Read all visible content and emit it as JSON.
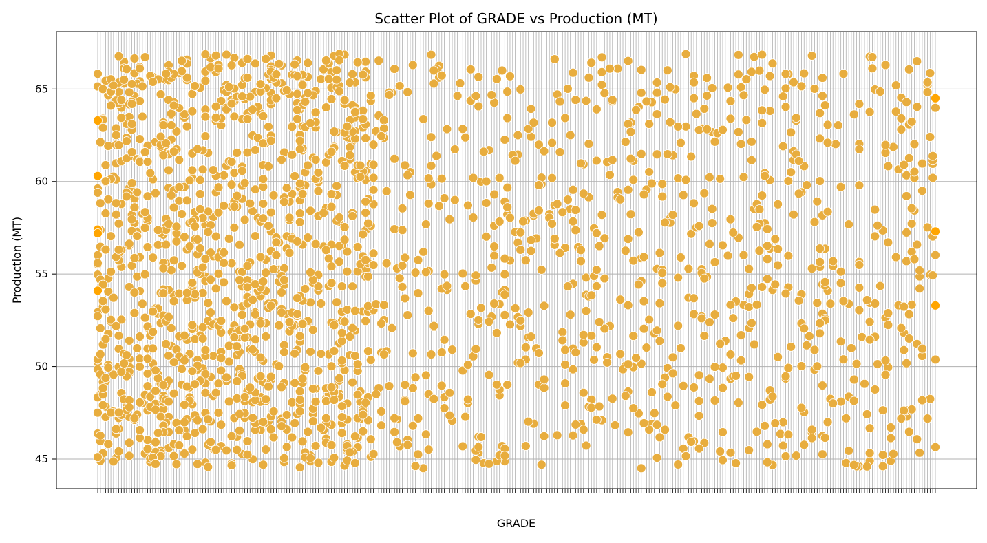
{
  "chart_data": {
    "type": "scatter",
    "title": "Scatter Plot of GRADE vs Production (MT)",
    "xlabel": "GRADE",
    "ylabel": "Production (MT)",
    "x_axis": "categorical",
    "category_count": 320,
    "ylim": [
      43.4,
      68.1
    ],
    "yticks": [
      45,
      50,
      55,
      60,
      65
    ],
    "grid": true,
    "x_tick_labels": "illegible (overlapping)",
    "marker_color": "#E8AD3E",
    "marker_edge_color": "#ffffff",
    "accent_point_color": "#FFA500",
    "grid_color": "#b0b0b0",
    "points": [
      [
        0,
        63.3
      ],
      [
        0,
        60.3
      ],
      [
        0,
        57.4
      ],
      [
        0,
        57.2
      ],
      [
        0,
        54.1
      ],
      [
        319,
        57.3
      ],
      [
        319,
        53.3
      ],
      [
        319,
        64.5
      ]
    ],
    "point_cloud": {
      "approx_count": 2000,
      "y_range": [
        44.5,
        66.9
      ],
      "note": "dense orange markers spread across all GRADE categories"
    }
  }
}
